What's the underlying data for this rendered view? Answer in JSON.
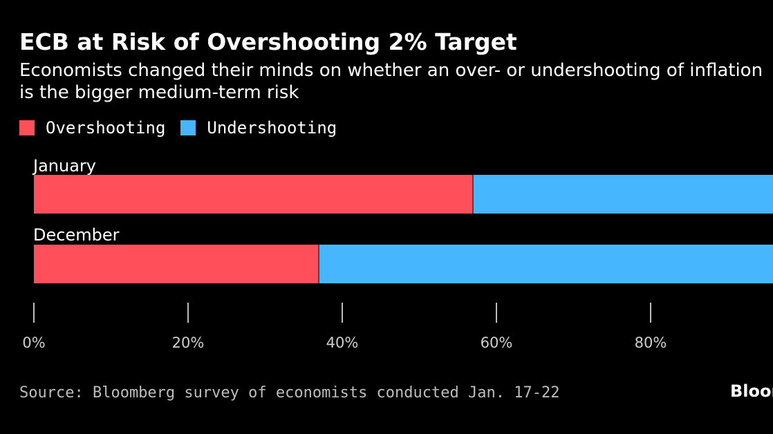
{
  "header": {
    "title": "ECB at Risk of Overshooting 2% Target",
    "subtitle": "Economists changed their minds on whether an over- or undershooting of inflation is the bigger medium-term risk"
  },
  "legend": {
    "items": [
      {
        "label": "Overshooting",
        "color": "#ff4f5a"
      },
      {
        "label": "Undershooting",
        "color": "#45b6ff"
      }
    ]
  },
  "chart_data": {
    "type": "bar",
    "orientation": "horizontal",
    "stacked": true,
    "categories": [
      "January",
      "December"
    ],
    "series": [
      {
        "name": "Overshooting",
        "color": "#ff4f5a",
        "values": [
          57,
          37
        ]
      },
      {
        "name": "Undershooting",
        "color": "#45b6ff",
        "values": [
          43,
          63
        ]
      }
    ],
    "xlim": [
      0,
      100
    ],
    "xticks": [
      0,
      20,
      40,
      60,
      80
    ],
    "xtick_labels": [
      "0%",
      "20%",
      "40%",
      "60%",
      "80%"
    ],
    "grid": false,
    "legend_position": "top-left"
  },
  "footer": {
    "source": "Source: Bloomberg survey of economists conducted Jan. 17-22",
    "logo": "Bloomberg"
  }
}
